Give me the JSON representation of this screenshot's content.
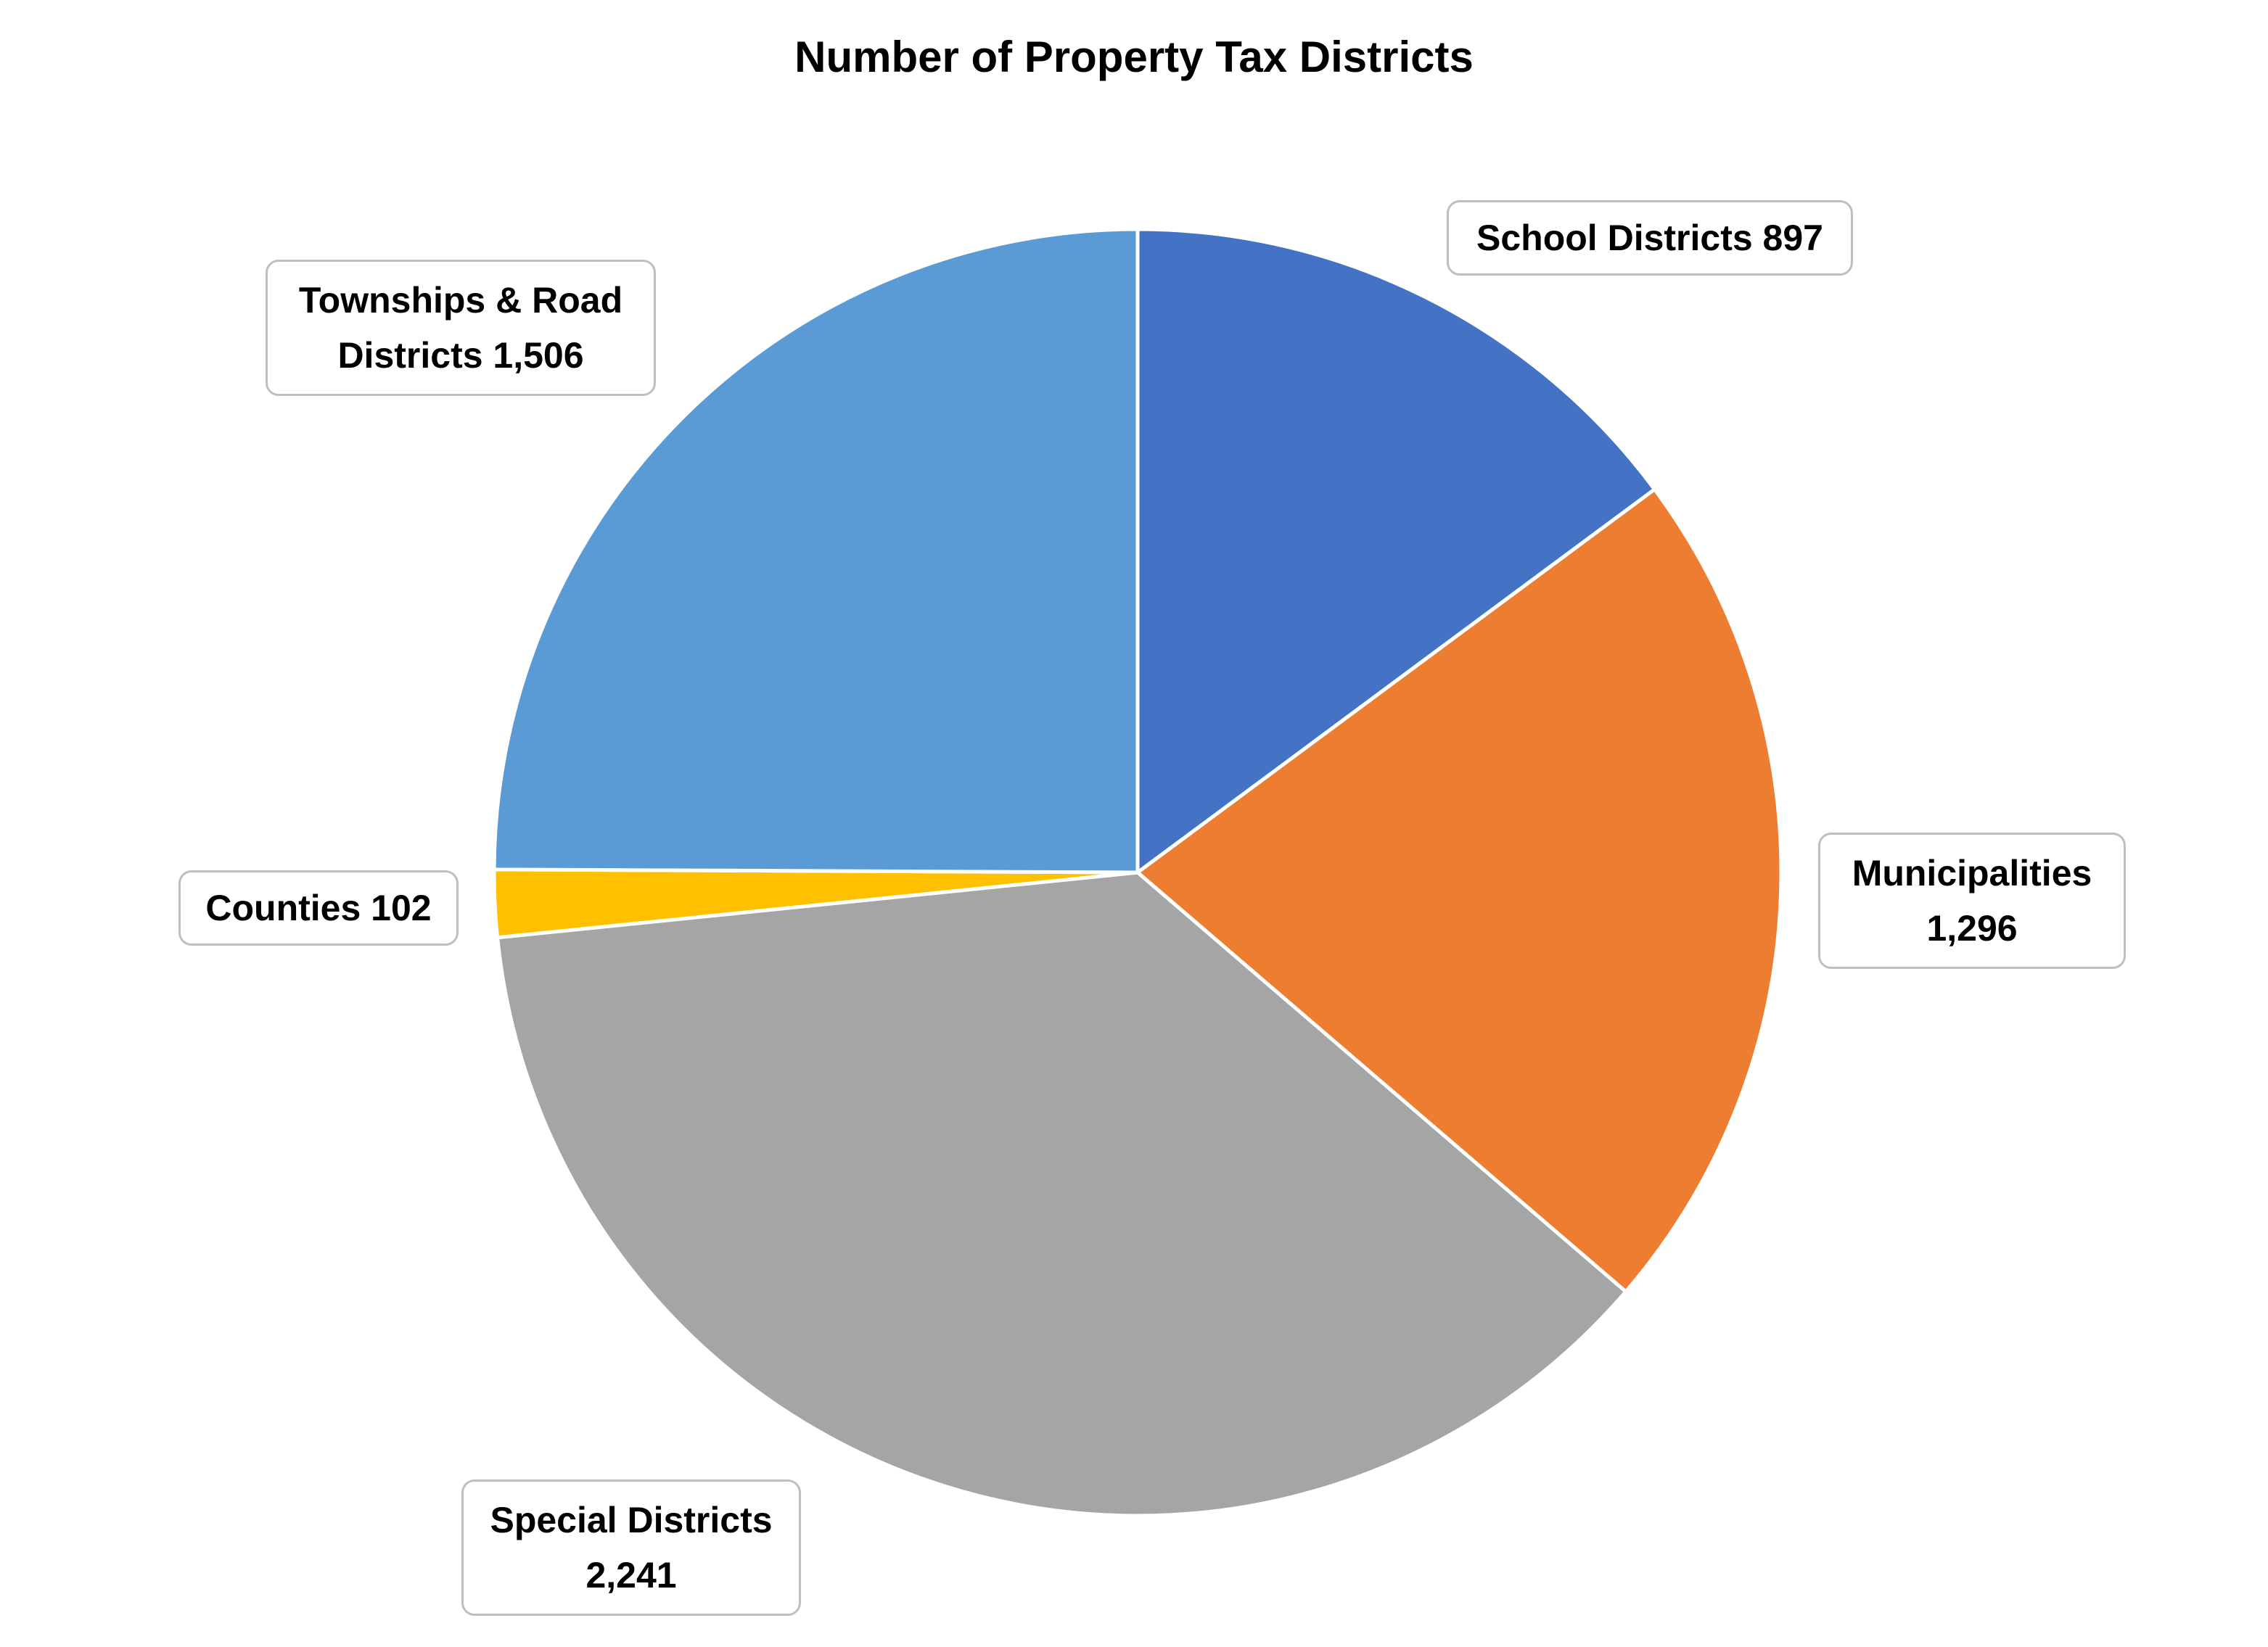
{
  "chart_data": {
    "type": "pie",
    "title": "Number of Property Tax Districts",
    "categories": [
      "School Districts",
      "Municipalities",
      "Special Districts",
      "Counties",
      "Townships & Road Districts"
    ],
    "values": [
      897,
      1296,
      2241,
      102,
      1506
    ],
    "value_labels": [
      "897",
      "1,296",
      "2,241",
      "102",
      "1,506"
    ],
    "colors": [
      "#4472C4",
      "#ED7D31",
      "#A5A5A5",
      "#FFC000",
      "#5B9BD5"
    ],
    "label_text": [
      [
        "School Districts 897"
      ],
      [
        "Municipalities",
        "1,296"
      ],
      [
        "Special Districts",
        "2,241"
      ],
      [
        "Counties 102"
      ],
      [
        "Townships & Road",
        "Districts 1,506"
      ]
    ],
    "legend": "none",
    "start_angle": "12 o'clock, clockwise"
  }
}
